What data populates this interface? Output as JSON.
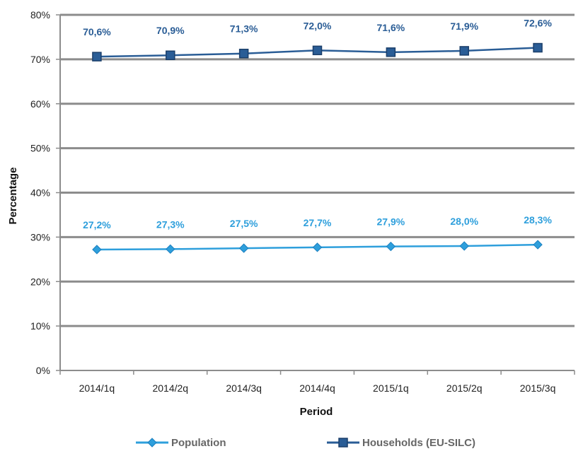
{
  "chart_data": {
    "type": "line",
    "categories": [
      "2014/1q",
      "2014/2q",
      "2014/3q",
      "2014/4q",
      "2015/1q",
      "2015/2q",
      "2015/3q"
    ],
    "series": [
      {
        "name": "Population",
        "values": [
          27.2,
          27.3,
          27.5,
          27.7,
          27.9,
          28.0,
          28.3
        ],
        "labels": [
          "27,2%",
          "27,3%",
          "27,5%",
          "27,7%",
          "27,9%",
          "28,0%",
          "28,3%"
        ],
        "color": "#2e9fdc",
        "marker": "diamond"
      },
      {
        "name": "Households (EU-SILC)",
        "values": [
          70.6,
          70.9,
          71.3,
          72.0,
          71.6,
          71.9,
          72.6
        ],
        "labels": [
          "70,6%",
          "70,9%",
          "71,3%",
          "72,0%",
          "71,6%",
          "71,9%",
          "72,6%"
        ],
        "color": "#2a5d96",
        "marker": "square"
      }
    ],
    "xlabel": "Period",
    "ylabel": "Percentage",
    "ylim": [
      0,
      80
    ],
    "yticks": [
      0,
      10,
      20,
      30,
      40,
      50,
      60,
      70,
      80
    ],
    "ytick_labels": [
      "0%",
      "10%",
      "20%",
      "30%",
      "40%",
      "50%",
      "60%",
      "70%",
      "80%"
    ],
    "grid": true,
    "legend_position": "bottom"
  }
}
